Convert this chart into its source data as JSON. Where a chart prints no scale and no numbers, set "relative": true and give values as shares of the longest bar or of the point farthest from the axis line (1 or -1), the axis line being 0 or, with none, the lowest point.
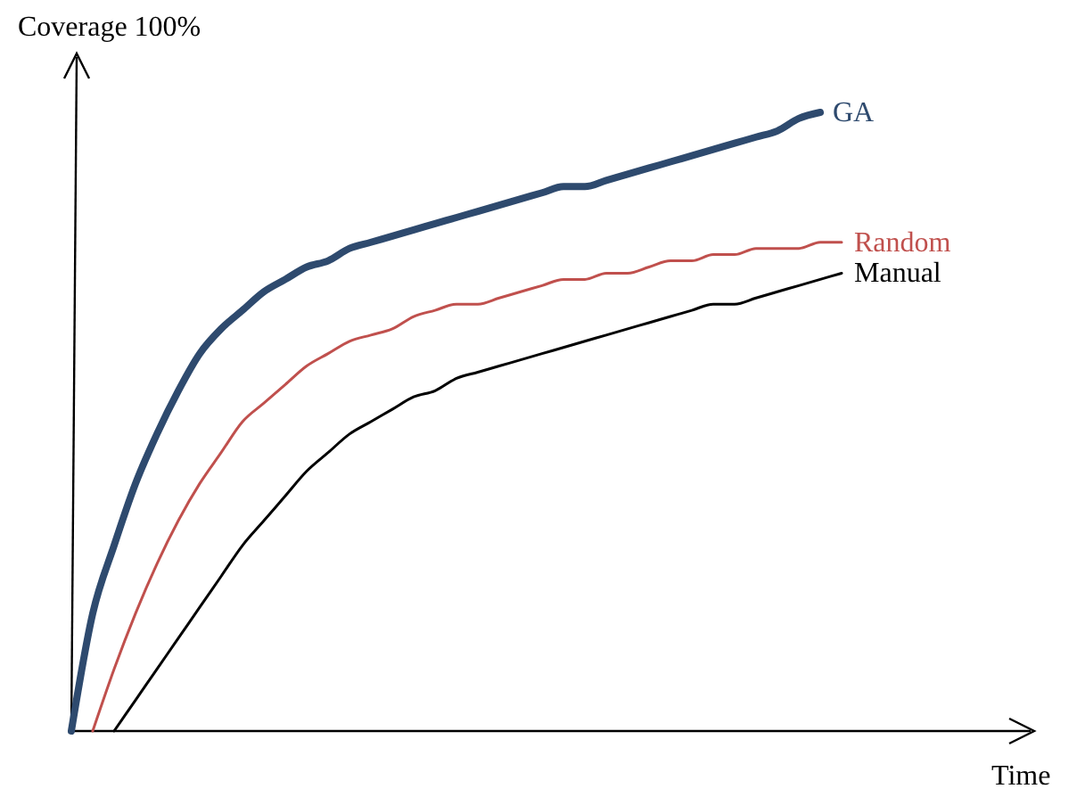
{
  "chart_data": {
    "type": "line",
    "xlabel": "Time",
    "ylabel": "Coverage 100%",
    "relative": true,
    "categories": [
      null,
      null,
      null,
      null,
      null,
      null,
      null,
      null,
      null,
      null,
      null,
      null,
      null,
      null,
      null,
      null,
      null,
      null,
      null,
      null,
      null,
      null,
      null,
      null,
      null,
      null,
      null,
      null,
      null,
      null,
      null,
      null,
      null,
      null,
      null,
      null,
      null
    ],
    "series": [
      {
        "name": "GA",
        "color": "#2e4a6e",
        "values": [
          0,
          0.19,
          0.3,
          0.4,
          0.48,
          0.55,
          0.61,
          0.65,
          0.68,
          0.71,
          0.73,
          0.75,
          0.76,
          0.78,
          0.79,
          0.8,
          0.81,
          0.82,
          0.83,
          0.84,
          0.85,
          0.86,
          0.87,
          0.88,
          0.88,
          0.89,
          0.9,
          0.91,
          0.92,
          0.93,
          0.94,
          0.95,
          0.96,
          0.97,
          0.99,
          1,
          null
        ]
      },
      {
        "name": "Random",
        "color": "#c0504d",
        "values": [
          null,
          0,
          0.1,
          0.19,
          0.27,
          0.34,
          0.4,
          0.45,
          0.5,
          0.53,
          0.56,
          0.59,
          0.61,
          0.63,
          0.64,
          0.65,
          0.67,
          0.68,
          0.69,
          0.69,
          0.7,
          0.71,
          0.72,
          0.73,
          0.73,
          0.74,
          0.74,
          0.75,
          0.76,
          0.76,
          0.77,
          0.77,
          0.78,
          0.78,
          0.78,
          0.79,
          0.79
        ]
      },
      {
        "name": "Manual",
        "color": "#000000",
        "values": [
          null,
          null,
          0,
          0.05,
          0.1,
          0.15,
          0.2,
          0.25,
          0.3,
          0.34,
          0.38,
          0.42,
          0.45,
          0.48,
          0.5,
          0.52,
          0.54,
          0.55,
          0.57,
          0.58,
          0.59,
          0.6,
          0.61,
          0.62,
          0.63,
          0.64,
          0.65,
          0.66,
          0.67,
          0.68,
          0.69,
          0.69,
          0.7,
          0.71,
          0.72,
          0.73,
          0.74
        ]
      }
    ]
  }
}
